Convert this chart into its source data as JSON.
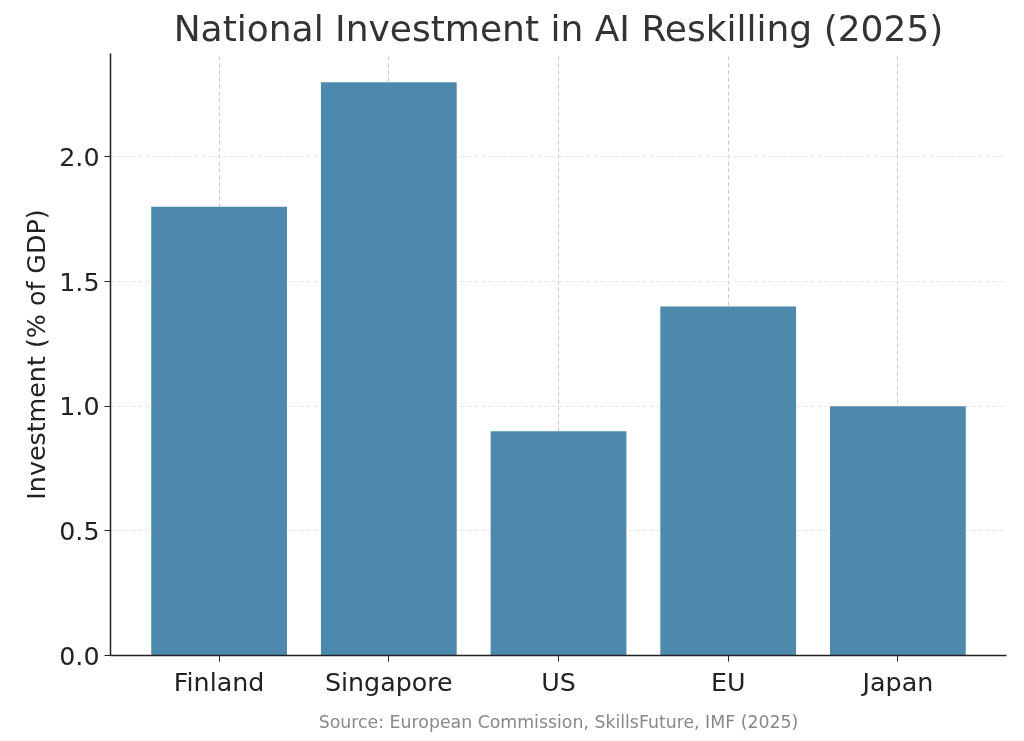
{
  "chart_data": {
    "type": "bar",
    "title": "National Investment in AI Reskilling (2025)",
    "ylabel": "Investment (% of GDP)",
    "categories": [
      "Finland",
      "Singapore",
      "US",
      "EU",
      "Japan"
    ],
    "values": [
      1.8,
      2.3,
      0.9,
      1.4,
      1.0
    ],
    "color": "#4d88ad",
    "ylim": [
      0,
      2.415
    ],
    "yticks": [
      {
        "value": 0,
        "label": "0.0"
      },
      {
        "value": 0.5,
        "label": "0.5"
      },
      {
        "value": 1,
        "label": "1.0"
      },
      {
        "value": 1.5,
        "label": "1.5"
      },
      {
        "value": 2,
        "label": "2.0"
      }
    ],
    "grid": true,
    "annotations": [
      "Source: European Commission, SkillsFuture, IMF (2025)"
    ]
  }
}
